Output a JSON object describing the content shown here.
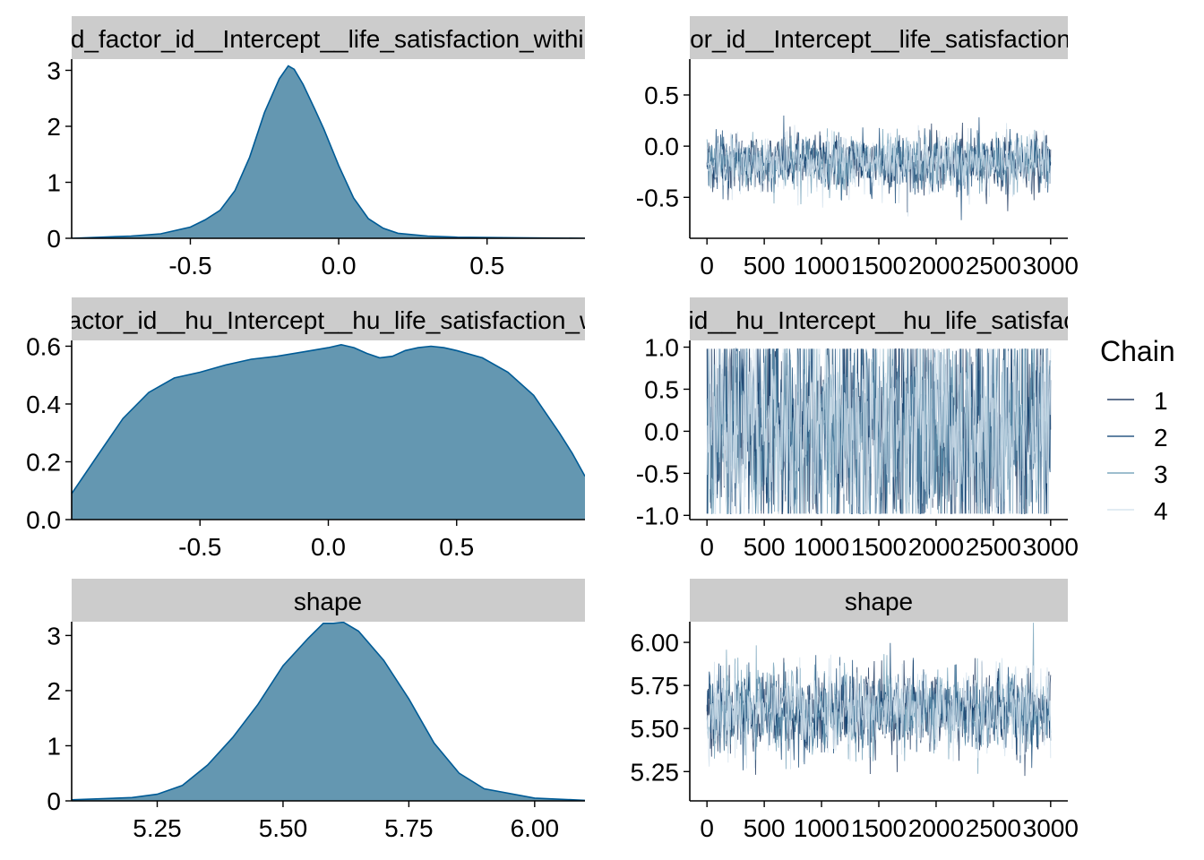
{
  "legend": {
    "title": "Chain",
    "position": "right",
    "entries": [
      "1",
      "2",
      "3",
      "4"
    ]
  },
  "colors": {
    "density_fill": "#6497b1",
    "density_line": "#005b96",
    "strip": "#cccccc",
    "chains": [
      "#011f4b",
      "#03396c",
      "#6497b1",
      "#d1e1ec"
    ]
  },
  "chart_data": [
    {
      "type": "area",
      "panel": "density",
      "strip_label": "sd_factor_id__Intercept__life_satisfaction_within",
      "xlim": [
        -0.9,
        0.83
      ],
      "ylim": [
        0,
        3.2
      ],
      "xticks": [
        -0.5,
        0.0,
        0.5
      ],
      "xtick_labels": [
        "-0.5",
        "0.0",
        "0.5"
      ],
      "yticks": [
        0,
        1,
        2,
        3
      ],
      "ytick_labels": [
        "0",
        "1",
        "2",
        "3"
      ],
      "x": [
        -0.9,
        -0.7,
        -0.6,
        -0.5,
        -0.45,
        -0.4,
        -0.35,
        -0.3,
        -0.25,
        -0.2,
        -0.17,
        -0.15,
        -0.12,
        -0.08,
        -0.05,
        0.0,
        0.05,
        0.1,
        0.15,
        0.2,
        0.3,
        0.4,
        0.6,
        0.83
      ],
      "y": [
        0.0,
        0.04,
        0.08,
        0.2,
        0.33,
        0.5,
        0.85,
        1.45,
        2.25,
        2.85,
        3.08,
        3.02,
        2.75,
        2.3,
        1.95,
        1.3,
        0.72,
        0.35,
        0.18,
        0.09,
        0.04,
        0.02,
        0.01,
        0.0
      ],
      "grid": false
    },
    {
      "type": "line",
      "panel": "trace",
      "strip_label": "sd_factor_id__Intercept__life_satisfaction_within",
      "xlim": [
        -150,
        3150
      ],
      "ylim": [
        -0.9,
        0.85
      ],
      "xticks": [
        0,
        500,
        1000,
        1500,
        2000,
        2500,
        3000
      ],
      "xtick_labels": [
        "0",
        "500",
        "1000",
        "1500",
        "2000",
        "2500",
        "3000"
      ],
      "yticks": [
        -0.5,
        0.0,
        0.5
      ],
      "ytick_labels": [
        "-0.5",
        "0.0",
        "0.5"
      ],
      "iterations": [
        0,
        3000
      ],
      "center": -0.16,
      "spread": 0.14,
      "grid": false,
      "series": [
        {
          "name": "1",
          "center": -0.16,
          "spread": 0.14
        },
        {
          "name": "2",
          "center": -0.16,
          "spread": 0.14
        },
        {
          "name": "3",
          "center": -0.16,
          "spread": 0.14
        },
        {
          "name": "4",
          "center": -0.16,
          "spread": 0.14
        }
      ]
    },
    {
      "type": "area",
      "panel": "density",
      "strip_label": "cor_factor_id__hu_Intercept__hu_life_satisfaction_within",
      "xlim": [
        -1.0,
        1.0
      ],
      "ylim": [
        0,
        0.62
      ],
      "xticks": [
        -0.5,
        0.0,
        0.5
      ],
      "xtick_labels": [
        "-0.5",
        "0.0",
        "0.5"
      ],
      "yticks": [
        0.0,
        0.2,
        0.4,
        0.6
      ],
      "ytick_labels": [
        "0.0",
        "0.2",
        "0.4",
        "0.6"
      ],
      "x": [
        -1.0,
        -0.9,
        -0.8,
        -0.7,
        -0.6,
        -0.5,
        -0.4,
        -0.3,
        -0.2,
        -0.1,
        0.0,
        0.05,
        0.1,
        0.15,
        0.2,
        0.25,
        0.3,
        0.35,
        0.4,
        0.45,
        0.5,
        0.6,
        0.7,
        0.8,
        0.9,
        0.95,
        1.0
      ],
      "y": [
        0.09,
        0.22,
        0.35,
        0.44,
        0.49,
        0.51,
        0.535,
        0.555,
        0.565,
        0.58,
        0.595,
        0.605,
        0.595,
        0.575,
        0.56,
        0.565,
        0.585,
        0.595,
        0.6,
        0.595,
        0.585,
        0.56,
        0.51,
        0.43,
        0.3,
        0.23,
        0.15
      ],
      "grid": false
    },
    {
      "type": "line",
      "panel": "trace",
      "strip_label": "cor_factor_id__hu_Intercept__hu_life_satisfaction_within",
      "xlim": [
        -150,
        3150
      ],
      "ylim": [
        -1.05,
        1.08
      ],
      "xticks": [
        0,
        500,
        1000,
        1500,
        2000,
        2500,
        3000
      ],
      "xtick_labels": [
        "0",
        "500",
        "1000",
        "1500",
        "2000",
        "2500",
        "3000"
      ],
      "yticks": [
        -1.0,
        -0.5,
        0.0,
        0.5,
        1.0
      ],
      "ytick_labels": [
        "-1.0",
        "-0.5",
        "0.0",
        "0.5",
        "1.0"
      ],
      "iterations": [
        0,
        3000
      ],
      "center": 0.0,
      "spread": 0.6,
      "grid": false,
      "series": [
        {
          "name": "1",
          "center": 0.0,
          "spread": 0.6
        },
        {
          "name": "2",
          "center": 0.0,
          "spread": 0.6
        },
        {
          "name": "3",
          "center": 0.0,
          "spread": 0.6
        },
        {
          "name": "4",
          "center": 0.0,
          "spread": 0.6
        }
      ]
    },
    {
      "type": "area",
      "panel": "density",
      "strip_label": "shape",
      "xlim": [
        5.08,
        6.1
      ],
      "ylim": [
        0,
        3.25
      ],
      "xticks": [
        5.25,
        5.5,
        5.75,
        6.0
      ],
      "xtick_labels": [
        "5.25",
        "5.50",
        "5.75",
        "6.00"
      ],
      "yticks": [
        0,
        1,
        2,
        3
      ],
      "ytick_labels": [
        "0",
        "1",
        "2",
        "3"
      ],
      "x": [
        5.08,
        5.2,
        5.25,
        5.3,
        5.35,
        5.4,
        5.45,
        5.5,
        5.55,
        5.58,
        5.6,
        5.62,
        5.65,
        5.7,
        5.75,
        5.8,
        5.85,
        5.9,
        6.0,
        6.1
      ],
      "y": [
        0.02,
        0.06,
        0.12,
        0.28,
        0.65,
        1.15,
        1.75,
        2.45,
        2.95,
        3.22,
        3.22,
        3.24,
        3.08,
        2.55,
        1.85,
        1.05,
        0.5,
        0.22,
        0.05,
        0.01
      ],
      "grid": false
    },
    {
      "type": "line",
      "panel": "trace",
      "strip_label": "shape",
      "xlim": [
        -150,
        3150
      ],
      "ylim": [
        5.08,
        6.12
      ],
      "xticks": [
        0,
        500,
        1000,
        1500,
        2000,
        2500,
        3000
      ],
      "xtick_labels": [
        "0",
        "500",
        "1000",
        "1500",
        "2000",
        "2500",
        "3000"
      ],
      "yticks": [
        5.25,
        5.5,
        5.75,
        6.0
      ],
      "ytick_labels": [
        "5.25",
        "5.50",
        "5.75",
        "6.00"
      ],
      "iterations": [
        0,
        3000
      ],
      "center": 5.6,
      "spread": 0.12,
      "grid": false,
      "series": [
        {
          "name": "1",
          "center": 5.6,
          "spread": 0.12
        },
        {
          "name": "2",
          "center": 5.6,
          "spread": 0.12
        },
        {
          "name": "3",
          "center": 5.6,
          "spread": 0.12
        },
        {
          "name": "4",
          "center": 5.6,
          "spread": 0.12
        }
      ]
    }
  ]
}
